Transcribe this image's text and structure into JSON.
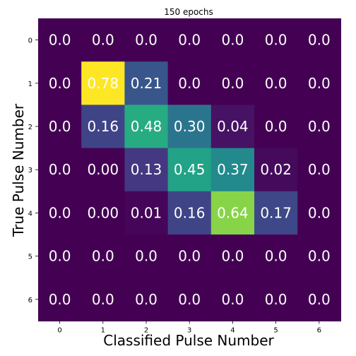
{
  "chart_data": {
    "type": "heatmap",
    "title": "150 epochs",
    "xlabel": "Classified Pulse Number",
    "ylabel": "True Pulse Number",
    "x_categories": [
      "0",
      "1",
      "2",
      "3",
      "4",
      "5",
      "6"
    ],
    "y_categories": [
      "0",
      "1",
      "2",
      "3",
      "4",
      "5",
      "6"
    ],
    "values": [
      [
        0.0,
        0.0,
        0.0,
        0.0,
        0.0,
        0.0,
        0.0
      ],
      [
        0.0,
        0.78,
        0.21,
        0.0,
        0.0,
        0.0,
        0.0
      ],
      [
        0.0,
        0.16,
        0.48,
        0.3,
        0.04,
        0.0,
        0.0
      ],
      [
        0.0,
        0.0,
        0.13,
        0.45,
        0.37,
        0.02,
        0.0
      ],
      [
        0.0,
        0.0,
        0.01,
        0.16,
        0.64,
        0.17,
        0.0
      ],
      [
        0.0,
        0.0,
        0.0,
        0.0,
        0.0,
        0.0,
        0.0
      ],
      [
        0.0,
        0.0,
        0.0,
        0.0,
        0.0,
        0.0,
        0.0
      ]
    ],
    "cell_labels": [
      [
        "0.0",
        "0.0",
        "0.0",
        "0.0",
        "0.0",
        "0.0",
        "0.0"
      ],
      [
        "0.0",
        "0.78",
        "0.21",
        "0.0",
        "0.0",
        "0.0",
        "0.0"
      ],
      [
        "0.0",
        "0.16",
        "0.48",
        "0.30",
        "0.04",
        "0.0",
        "0.0"
      ],
      [
        "0.0",
        "0.00",
        "0.13",
        "0.45",
        "0.37",
        "0.02",
        "0.0"
      ],
      [
        "0.0",
        "0.00",
        "0.01",
        "0.16",
        "0.64",
        "0.17",
        "0.0"
      ],
      [
        "0.0",
        "0.0",
        "0.0",
        "0.0",
        "0.0",
        "0.0",
        "0.0"
      ],
      [
        "0.0",
        "0.0",
        "0.0",
        "0.0",
        "0.0",
        "0.0",
        "0.0"
      ]
    ],
    "value_range": [
      0.0,
      0.78
    ],
    "colormap": "viridis",
    "grid": false
  }
}
